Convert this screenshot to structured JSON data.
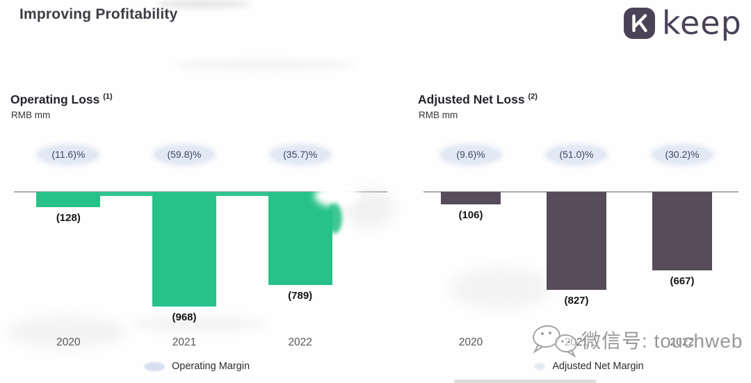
{
  "slide": {
    "title": "Improving Profitability",
    "brand": {
      "name": "keep",
      "logo_letter": "K",
      "logo_color": "#4a4357"
    }
  },
  "watermark": {
    "icon": "wechat-icon",
    "text": "微信号: touchweb"
  },
  "chart_data": [
    {
      "type": "bar",
      "id": "operating-loss",
      "title": "Operating Loss",
      "title_superscript": "(1)",
      "unit_label": "RMB mm",
      "categories": [
        "2020",
        "2021",
        "2022"
      ],
      "values": [
        -128,
        -968,
        -789
      ],
      "value_labels": [
        "(128)",
        "(968)",
        "(789)"
      ],
      "margin_labels": [
        "(11.6)%",
        "(59.8)%",
        "(35.7)%"
      ],
      "legend": "Operating Margin",
      "legend_position": "bottom",
      "bar_color": "#26c289",
      "badge_bg": "#e2e9f5",
      "xlabel": "",
      "ylabel": "",
      "ylim": [
        0,
        -1000
      ],
      "grid": false
    },
    {
      "type": "bar",
      "id": "adjusted-net-loss",
      "title": "Adjusted Net Loss",
      "title_superscript": "(2)",
      "unit_label": "RMB mm",
      "categories": [
        "2020",
        "2021",
        "2022"
      ],
      "values": [
        -106,
        -827,
        -667
      ],
      "value_labels": [
        "(106)",
        "(827)",
        "(667)"
      ],
      "margin_labels": [
        "(9.6)%",
        "(51.0)%",
        "(30.2)%"
      ],
      "legend": "Adjusted Net Margin",
      "legend_position": "bottom",
      "bar_color": "#564c5a",
      "badge_bg": "#e2e9f5",
      "xlabel": "",
      "ylabel": "",
      "ylim": [
        0,
        -1000
      ],
      "grid": false
    }
  ]
}
